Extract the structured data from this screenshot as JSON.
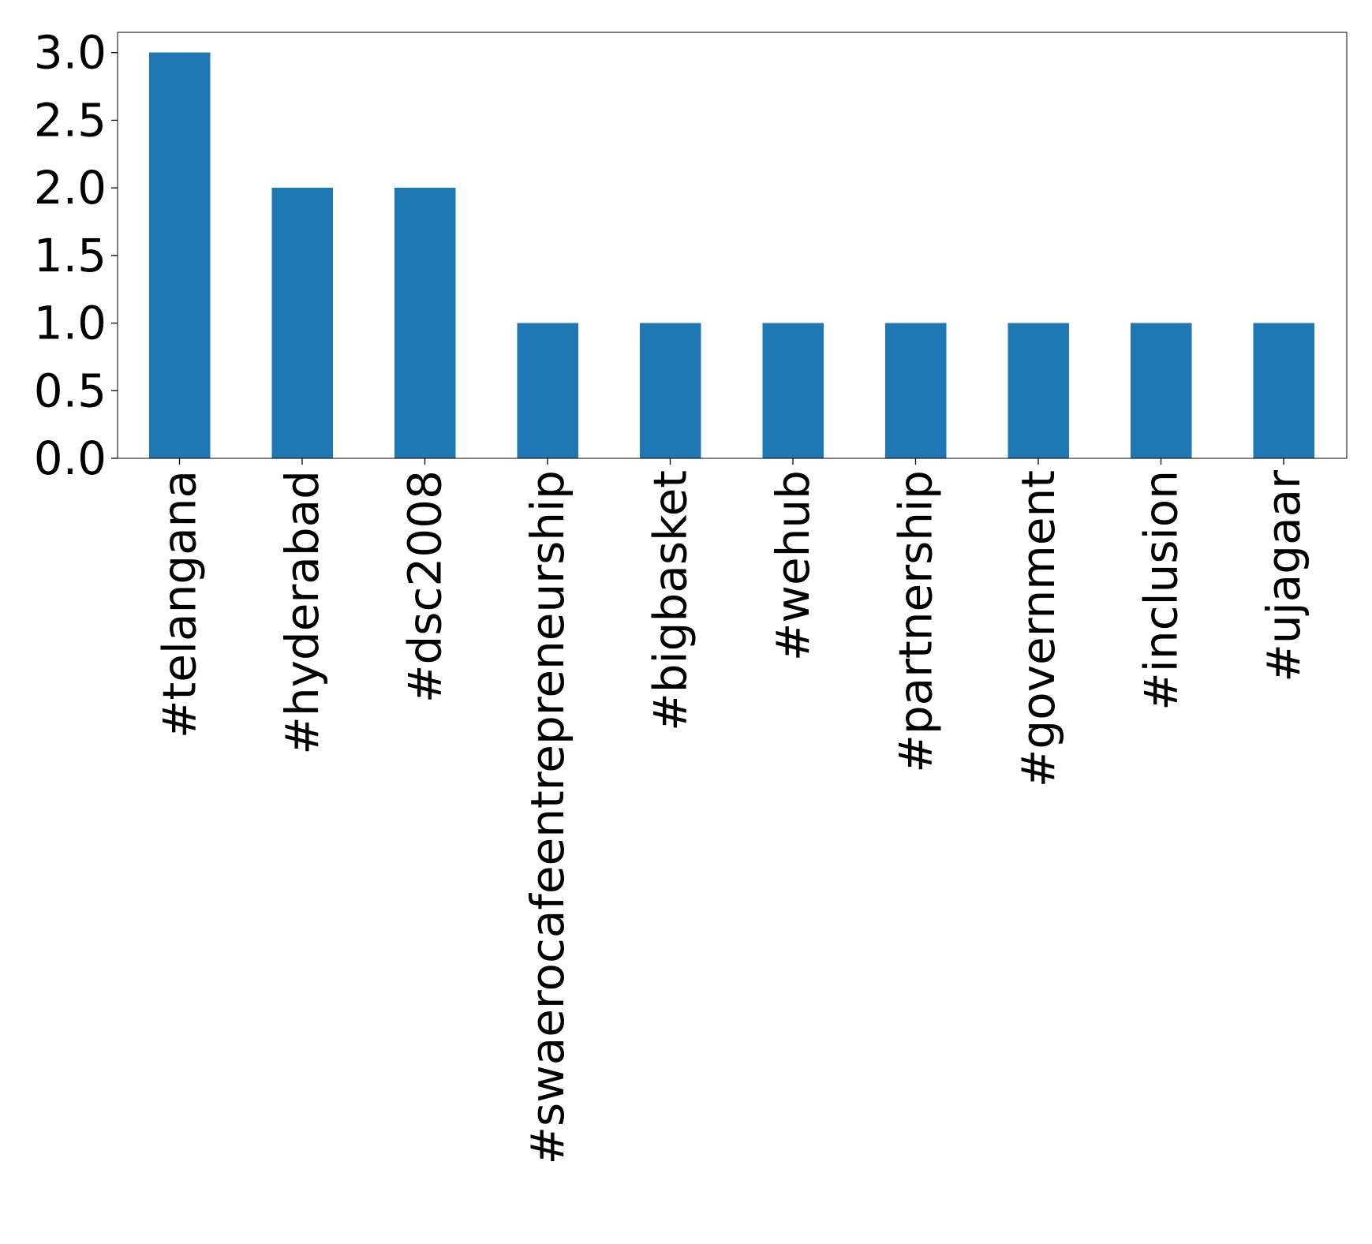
{
  "chart_data": {
    "type": "bar",
    "categories": [
      "#telangana",
      "#hyderabad",
      "#dsc2008",
      "#swaerocafeentrepreneurship",
      "#bigbasket",
      "#wehub",
      "#partnership",
      "#government",
      "#inclusion",
      "#ujagaar"
    ],
    "values": [
      3,
      2,
      2,
      1,
      1,
      1,
      1,
      1,
      1,
      1
    ],
    "yticks": [
      "0.0",
      "0.5",
      "1.0",
      "1.5",
      "2.0",
      "2.5",
      "3.0"
    ],
    "ylim": [
      0,
      3.15
    ],
    "bar_color": "#1f77b4",
    "title": "",
    "xlabel": "",
    "ylabel": "",
    "grid": false,
    "legend": "none"
  }
}
